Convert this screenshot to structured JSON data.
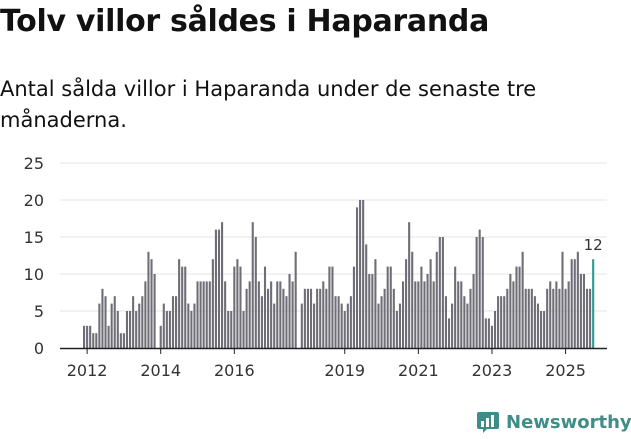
{
  "chart_data": {
    "type": "bar",
    "title": "Tolv villor såldes i Haparanda",
    "subtitle": "Antal sålda villor i Haparanda under de senaste tre månaderna.",
    "xlabel": "",
    "ylabel": "",
    "ylim": [
      0,
      25
    ],
    "yticks": [
      "0",
      "5",
      "10",
      "15",
      "20",
      "25"
    ],
    "xticks": [
      {
        "label": "2012",
        "index": 1
      },
      {
        "label": "2014",
        "index": 25
      },
      {
        "label": "2016",
        "index": 49
      },
      {
        "label": "2019",
        "index": 85
      },
      {
        "label": "2021",
        "index": 109
      },
      {
        "label": "2023",
        "index": 133
      },
      {
        "label": "2025",
        "index": 157
      }
    ],
    "values": [
      3,
      3,
      3,
      2,
      2,
      6,
      8,
      7,
      3,
      6,
      7,
      5,
      2,
      2,
      5,
      5,
      7,
      5,
      6,
      7,
      9,
      13,
      12,
      10,
      0,
      3,
      6,
      5,
      5,
      7,
      7,
      12,
      11,
      11,
      6,
      5,
      6,
      9,
      9,
      9,
      9,
      9,
      12,
      16,
      16,
      17,
      9,
      5,
      5,
      11,
      12,
      11,
      5,
      8,
      9,
      17,
      15,
      9,
      7,
      11,
      8,
      9,
      6,
      9,
      9,
      8,
      7,
      10,
      9,
      13,
      0,
      6,
      8,
      8,
      8,
      6,
      8,
      8,
      9,
      8,
      11,
      11,
      7,
      7,
      6,
      5,
      6,
      7,
      11,
      19,
      20,
      20,
      14,
      10,
      10,
      12,
      6,
      7,
      8,
      11,
      11,
      8,
      5,
      6,
      9,
      12,
      17,
      13,
      9,
      9,
      11,
      9,
      10,
      12,
      9,
      13,
      15,
      15,
      7,
      4,
      6,
      11,
      9,
      9,
      7,
      6,
      8,
      10,
      15,
      16,
      15,
      4,
      4,
      3,
      5,
      7,
      7,
      7,
      8,
      10,
      9,
      11,
      11,
      13,
      8,
      8,
      8,
      7,
      6,
      5,
      5,
      8,
      9,
      8,
      9,
      8,
      13,
      8,
      9,
      12,
      12,
      13,
      10,
      10,
      8,
      8,
      12
    ],
    "highlight_label": "12",
    "colors": {
      "bar": "#6f6e76",
      "highlight": "#2a9a92",
      "grid": "#e3e3e3",
      "axis": "#222222",
      "tick_text": "#333333",
      "logo": "#3e8e87"
    }
  },
  "brand": {
    "name": "Newsworthy",
    "icon": "newsworthy-bar-icon"
  }
}
